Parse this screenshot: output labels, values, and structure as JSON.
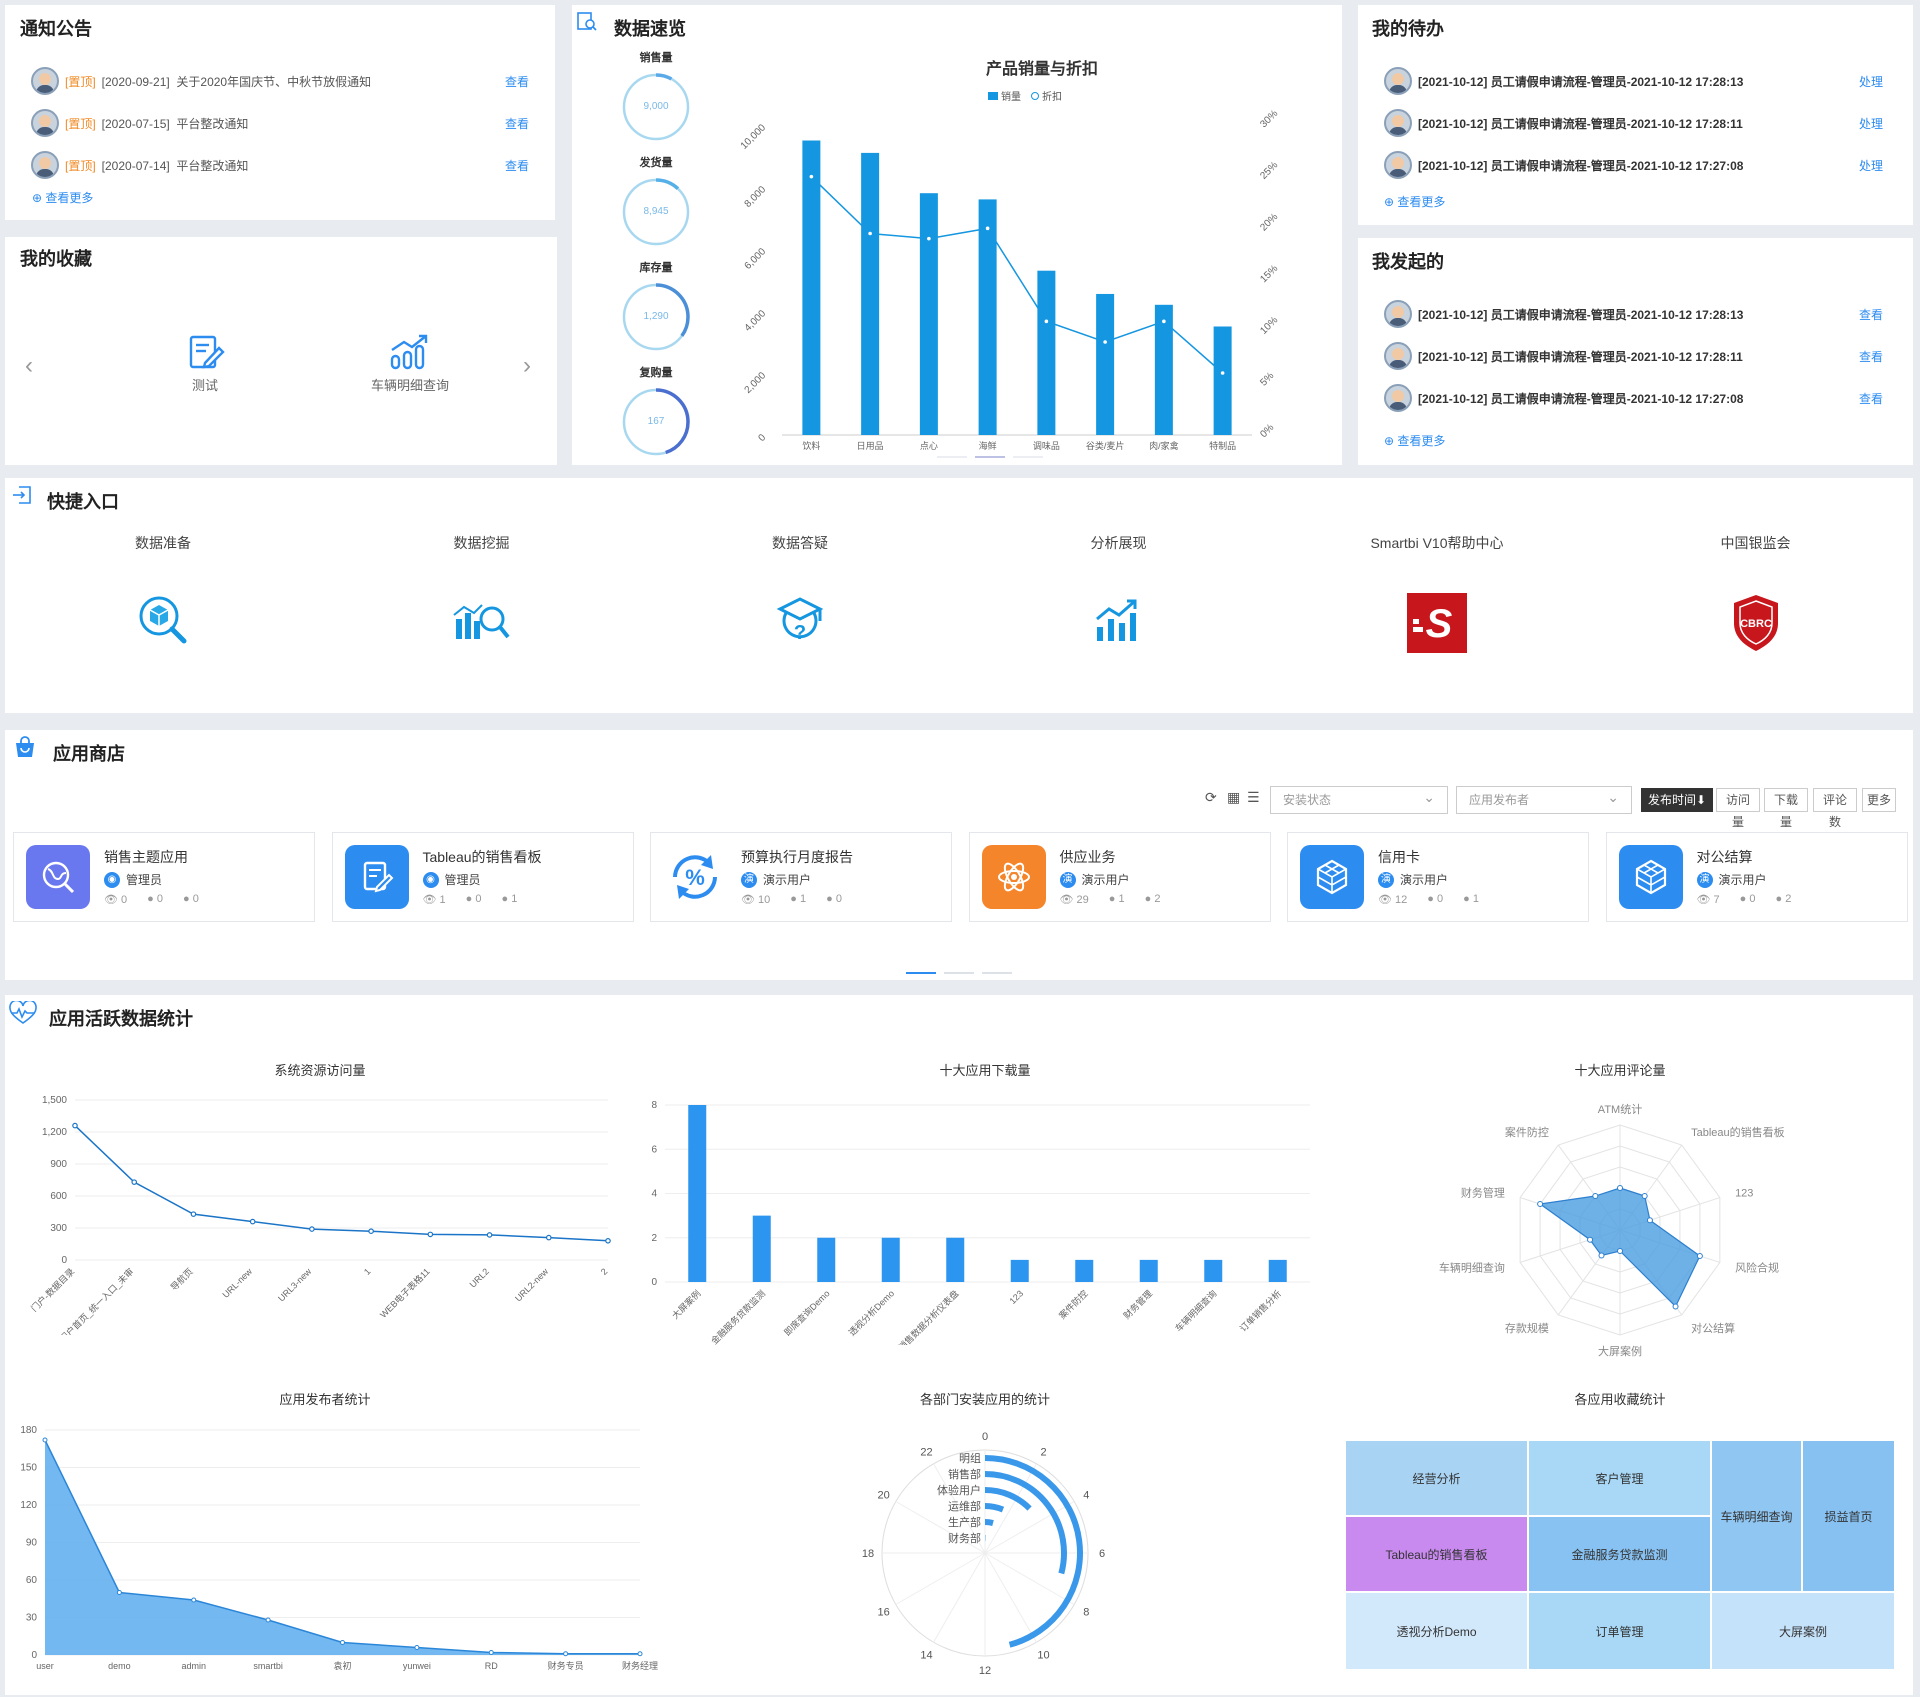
{
  "notice": {
    "title": "通知公告",
    "items": [
      {
        "tag": "[置顶]",
        "date": "[2020-09-21]",
        "text": "关于2020年国庆节、中秋节放假通知",
        "action": "查看"
      },
      {
        "tag": "[置顶]",
        "date": "[2020-07-15]",
        "text": "平台整改通知",
        "action": "查看"
      },
      {
        "tag": "[置顶]",
        "date": "[2020-07-14]",
        "text": "平台整改通知",
        "action": "查看"
      }
    ],
    "more": "查看更多"
  },
  "favorites": {
    "title": "我的收藏",
    "items": [
      {
        "label": "测试",
        "icon": "edit-doc-icon"
      },
      {
        "label": "车辆明细查询",
        "icon": "chart-up-icon"
      }
    ]
  },
  "overview": {
    "title": "数据速览",
    "rings": [
      {
        "label": "销售量",
        "value": "9,000"
      },
      {
        "label": "发货量",
        "value": "8,945"
      },
      {
        "label": "库存量",
        "value": "1,290"
      },
      {
        "label": "复购量",
        "value": "167"
      }
    ]
  },
  "todo": {
    "title": "我的待办",
    "items": [
      {
        "text": "[2021-10-12]  员工请假申请流程-管理员-2021-10-12 17:28:13",
        "action": "处理"
      },
      {
        "text": "[2021-10-12]  员工请假申请流程-管理员-2021-10-12 17:28:11",
        "action": "处理"
      },
      {
        "text": "[2021-10-12]  员工请假申请流程-管理员-2021-10-12 17:27:08",
        "action": "处理"
      }
    ],
    "more": "查看更多"
  },
  "initiated": {
    "title": "我发起的",
    "items": [
      {
        "text": "[2021-10-12]  员工请假申请流程-管理员-2021-10-12 17:28:13",
        "action": "查看"
      },
      {
        "text": "[2021-10-12]  员工请假申请流程-管理员-2021-10-12 17:28:11",
        "action": "查看"
      },
      {
        "text": "[2021-10-12]  员工请假申请流程-管理员-2021-10-12 17:27:08",
        "action": "查看"
      }
    ],
    "more": "查看更多"
  },
  "quick": {
    "title": "快捷入口",
    "items": [
      {
        "label": "数据准备",
        "icon": "cube-search-icon"
      },
      {
        "label": "数据挖掘",
        "icon": "mining-icon"
      },
      {
        "label": "数据答疑",
        "icon": "graduation-cap-question-icon"
      },
      {
        "label": "分析展现",
        "icon": "bar-trend-icon"
      },
      {
        "label": "Smartbi V10帮助中心",
        "icon": "smartbi-logo-icon"
      },
      {
        "label": "中国银监会",
        "icon": "cbrc-shield-icon"
      }
    ]
  },
  "store": {
    "title": "应用商店",
    "filters": {
      "install": "安装状态",
      "publisher": "应用发布者"
    },
    "sort": [
      "发布时间⬇",
      "访问量",
      "下载量",
      "评论数",
      "更多"
    ],
    "apps": [
      {
        "name": "销售主题应用",
        "user": "管理员",
        "views": "0",
        "downloads": "0",
        "comments": "0",
        "color": "#6a78f0",
        "icon": "globe-search-icon"
      },
      {
        "name": "Tableau的销售看板",
        "user": "管理员",
        "views": "1",
        "downloads": "0",
        "comments": "1",
        "color": "#2d8cf0",
        "icon": "edit-doc-icon"
      },
      {
        "name": "预算执行月度报告",
        "user": "演示用户",
        "views": "10",
        "downloads": "1",
        "comments": "0",
        "color": "#ffffff",
        "icon": "percent-cycle-icon"
      },
      {
        "name": "供应业务",
        "user": "演示用户",
        "views": "29",
        "downloads": "1",
        "comments": "2",
        "color": "#f5852a",
        "icon": "atom-icon"
      },
      {
        "name": "信用卡",
        "user": "演示用户",
        "views": "12",
        "downloads": "0",
        "comments": "1",
        "color": "#2d8cf0",
        "icon": "cubes-icon"
      },
      {
        "name": "对公结算",
        "user": "演示用户",
        "views": "7",
        "downloads": "0",
        "comments": "2",
        "color": "#2d8cf0",
        "icon": "cubes-icon"
      }
    ]
  },
  "activity": {
    "title": "应用活跃数据统计"
  },
  "chart_data": [
    {
      "id": "sales",
      "type": "bar+line",
      "title": "产品销量与折扣",
      "legend": [
        "销量",
        "折扣"
      ],
      "categories": [
        "饮料",
        "日用品",
        "点心",
        "海鲜",
        "调味品",
        "谷类/麦片",
        "肉/家禽",
        "特制品"
      ],
      "series": [
        {
          "name": "销量",
          "type": "bar",
          "values": [
            9500,
            9100,
            7800,
            7600,
            5300,
            4550,
            4200,
            3500
          ]
        },
        {
          "name": "折扣",
          "type": "line",
          "values": [
            25,
            19.5,
            19,
            20,
            11,
            9,
            11,
            6
          ]
        }
      ],
      "ylim": [
        0,
        10000
      ],
      "yticks": [
        "0",
        "2,000",
        "4,000",
        "6,000",
        "8,000",
        "10,000"
      ],
      "y2lim": [
        0,
        30
      ],
      "y2ticks": [
        "0%",
        "5%",
        "10%",
        "15%",
        "20%",
        "25%",
        "30%"
      ]
    },
    {
      "id": "visits",
      "type": "line",
      "title": "系统资源访问量",
      "categories": [
        "门户-数据目录",
        "门户首页_统一入口_未审",
        "导航页",
        "URL-new",
        "URL3-new",
        "1",
        "WEB电子表格11",
        "URL2",
        "URL2-new",
        "2"
      ],
      "values": [
        1260,
        730,
        430,
        360,
        290,
        270,
        240,
        235,
        210,
        180
      ],
      "ylim": [
        0,
        1500
      ],
      "yticks": [
        "0",
        "300",
        "600",
        "900",
        "1,200",
        "1,500"
      ]
    },
    {
      "id": "downloads",
      "type": "bar",
      "title": "十大应用下载量",
      "categories": [
        "大屏案例",
        "金融服务贷款监测",
        "即席查询Demo",
        "透视分析Demo",
        "销售数据分析仪表盘",
        "123",
        "案件防控",
        "财务管理",
        "车辆明细查询",
        "订单销售分析"
      ],
      "values": [
        8,
        3,
        2,
        2,
        2,
        1,
        1,
        1,
        1,
        1
      ],
      "ylim": [
        0,
        8
      ],
      "yticks": [
        "0",
        "2",
        "4",
        "6",
        "8"
      ]
    },
    {
      "id": "comments",
      "type": "radar",
      "title": "十大应用评论量",
      "indicators": [
        "ATM统计",
        "Tableau的销售看板",
        "123",
        "风险合规",
        "对公结算",
        "大屏案例",
        "存款规模",
        "车辆明细查询",
        "财务管理",
        "案件防控"
      ],
      "values": [
        2,
        2,
        1.5,
        4,
        4.5,
        1,
        1.5,
        1.5,
        4,
        2
      ],
      "max": 5
    },
    {
      "id": "publishers",
      "type": "area",
      "title": "应用发布者统计",
      "categories": [
        "user",
        "demo",
        "admin",
        "smartbi",
        "袁初",
        "yunwei",
        "RD",
        "财务专员",
        "财务经理"
      ],
      "values": [
        172,
        50,
        44,
        28,
        10,
        6,
        2,
        1,
        1
      ],
      "ylim": [
        0,
        180
      ],
      "yticks": [
        "0",
        "30",
        "60",
        "90",
        "120",
        "150",
        "180"
      ]
    },
    {
      "id": "departments",
      "type": "polar-bar",
      "title": "各部门安装应用的统计",
      "categories": [
        "财务部",
        "生产部",
        "运维部",
        "体验用户",
        "销售部",
        "明组"
      ],
      "values": [
        0.1,
        1,
        1.5,
        3,
        7,
        11
      ],
      "max": 24,
      "ticks": [
        "0",
        "2",
        "4",
        "6",
        "8",
        "10",
        "12",
        "14",
        "16",
        "18",
        "20",
        "22"
      ]
    },
    {
      "id": "favorites",
      "type": "treemap",
      "title": "各应用收藏统计",
      "items": [
        {
          "name": "经营分析",
          "value": 1,
          "color": "#a8d3f3"
        },
        {
          "name": "客户管理",
          "value": 1,
          "color": "#a8d8f6"
        },
        {
          "name": "车辆明细查询",
          "value": 1.6,
          "color": "#8fc6f2"
        },
        {
          "name": "损益首页",
          "value": 1.6,
          "color": "#86c1f2"
        },
        {
          "name": "Tableau的销售看板",
          "value": 1,
          "color": "#c98af0"
        },
        {
          "name": "金融服务贷款监测",
          "value": 1,
          "color": "#88c2f2"
        },
        {
          "name": "透视分析Demo",
          "value": 1,
          "color": "#d2e8fb"
        },
        {
          "name": "订单管理",
          "value": 1,
          "color": "#a8d8f6"
        },
        {
          "name": "大屏案例",
          "value": 1,
          "color": "#c5e2fb"
        }
      ]
    }
  ]
}
